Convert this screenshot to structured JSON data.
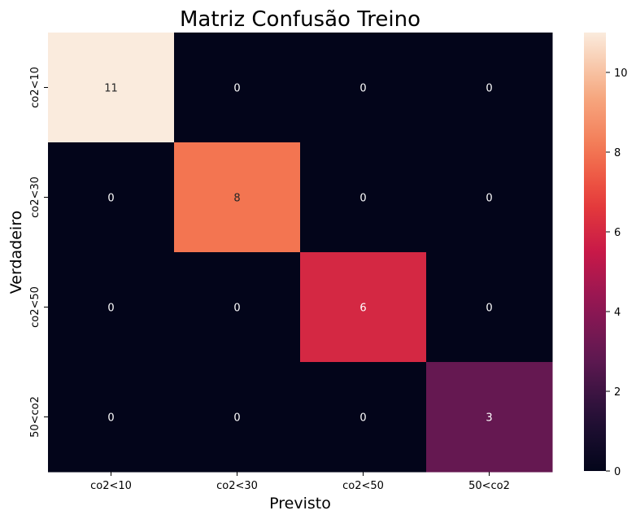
{
  "chart_data": {
    "type": "heatmap",
    "title": "Matriz Confusão Treino",
    "xlabel": "Previsto",
    "ylabel": "Verdadeiro",
    "x_categories": [
      "co2<10",
      "co2<30",
      "co2<50",
      "50<co2"
    ],
    "y_categories": [
      "co2<10",
      "co2<30",
      "co2<50",
      "50<co2"
    ],
    "values": [
      [
        11,
        0,
        0,
        0
      ],
      [
        0,
        8,
        0,
        0
      ],
      [
        0,
        0,
        6,
        0
      ],
      [
        0,
        0,
        0,
        3
      ]
    ],
    "colorbar": {
      "ticks": [
        0,
        2,
        4,
        6,
        8,
        10
      ],
      "range": [
        0,
        11
      ],
      "colormap": "rocket"
    }
  }
}
